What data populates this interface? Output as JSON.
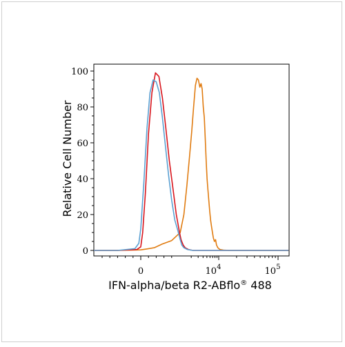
{
  "chart_data": {
    "type": "line",
    "xlabel": "IFN-alpha/beta R2-ABflo",
    "xlabel_sup": "®",
    "xlabel_suffix": " 488",
    "ylabel": "Relative Cell Number",
    "ylim": [
      0,
      100
    ],
    "y_ticks": [
      0,
      20,
      40,
      60,
      80,
      100
    ],
    "x_scale": "biexponential",
    "x_ticks": [
      {
        "label": "0",
        "value": 0
      },
      {
        "label": "10",
        "exp": "4",
        "value": 10000
      },
      {
        "label": "10",
        "exp": "5",
        "value": 100000
      }
    ],
    "grid": false,
    "series": [
      {
        "color": "#e07b10",
        "x": [
          -2000,
          -600,
          0,
          150,
          350,
          550,
          800,
          1050,
          1300,
          1550,
          1800,
          2050,
          2300,
          2550,
          2800,
          3050,
          3300,
          3550,
          3800,
          4050,
          4300,
          4550,
          4800,
          5050,
          5300,
          5600,
          5900,
          6200,
          6500,
          6800,
          7300,
          7800,
          8300,
          8800,
          9500,
          10500,
          12000,
          15000,
          30000,
          100000,
          150000
        ],
        "y": [
          0,
          0,
          0.3,
          0.8,
          1.5,
          3.5,
          5.5,
          10,
          20,
          36,
          52,
          66,
          80,
          92,
          96,
          95,
          91,
          93,
          90,
          80,
          74,
          62,
          50,
          40,
          34,
          28,
          22,
          17,
          14,
          11,
          7,
          5,
          6,
          3,
          1.5,
          0.5,
          0.2,
          0,
          0,
          0,
          0
        ]
      },
      {
        "color": "#d8141c",
        "x": [
          -2000,
          -600,
          -100,
          0,
          50,
          120,
          200,
          290,
          380,
          470,
          560,
          650,
          740,
          830,
          920,
          1010,
          1100,
          1250,
          1400,
          1700,
          2200,
          4000,
          100000,
          150000
        ],
        "y": [
          0,
          0,
          0.5,
          2,
          10,
          32,
          65,
          88,
          99,
          97,
          85,
          68,
          50,
          35,
          20,
          10,
          6,
          3,
          1.5,
          0.5,
          0,
          0,
          0,
          0
        ]
      },
      {
        "color": "#5aa0d2",
        "x": [
          -2000,
          -600,
          -150,
          -50,
          0,
          80,
          160,
          240,
          320,
          400,
          480,
          560,
          640,
          720,
          800,
          880,
          960,
          1050,
          1150,
          1300,
          1600,
          2200,
          4000,
          100000,
          150000
        ],
        "y": [
          0,
          0,
          1,
          4,
          12,
          38,
          68,
          88,
          95,
          94,
          88,
          74,
          58,
          42,
          28,
          17,
          11,
          6,
          3,
          1.5,
          0.5,
          0,
          0,
          0,
          0
        ]
      }
    ]
  }
}
